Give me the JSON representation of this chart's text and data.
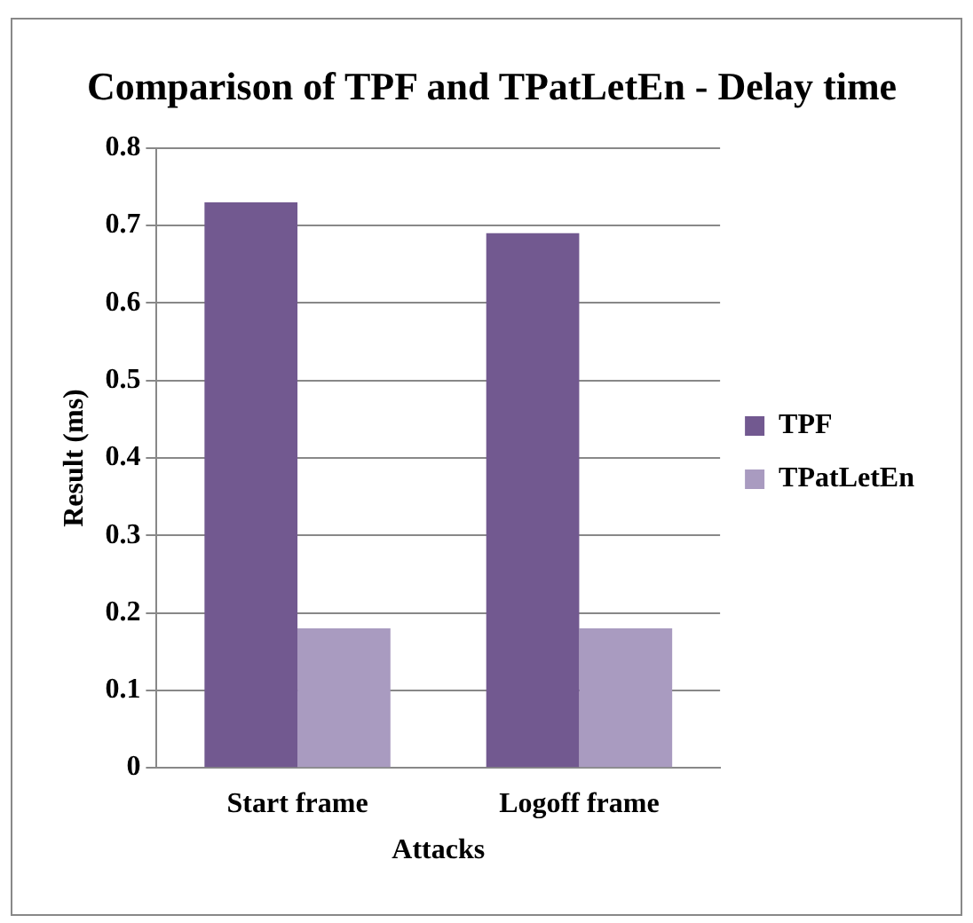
{
  "chart_data": {
    "type": "bar",
    "title": "Comparison of TPF and TPatLetEn - Delay time",
    "xlabel": "Attacks",
    "ylabel": "Result (ms)",
    "categories": [
      "Start frame",
      "Logoff frame"
    ],
    "series": [
      {
        "name": "TPF",
        "color": "#725990",
        "values": [
          0.73,
          0.69
        ]
      },
      {
        "name": "TPatLetEn",
        "color": "#a99bc0",
        "values": [
          0.18,
          0.18
        ]
      }
    ],
    "ylim": [
      0,
      0.8
    ],
    "yticks": [
      0,
      0.1,
      0.2,
      0.3,
      0.4,
      0.5,
      0.6,
      0.7,
      0.8
    ],
    "grid": "y",
    "legend": "right"
  }
}
